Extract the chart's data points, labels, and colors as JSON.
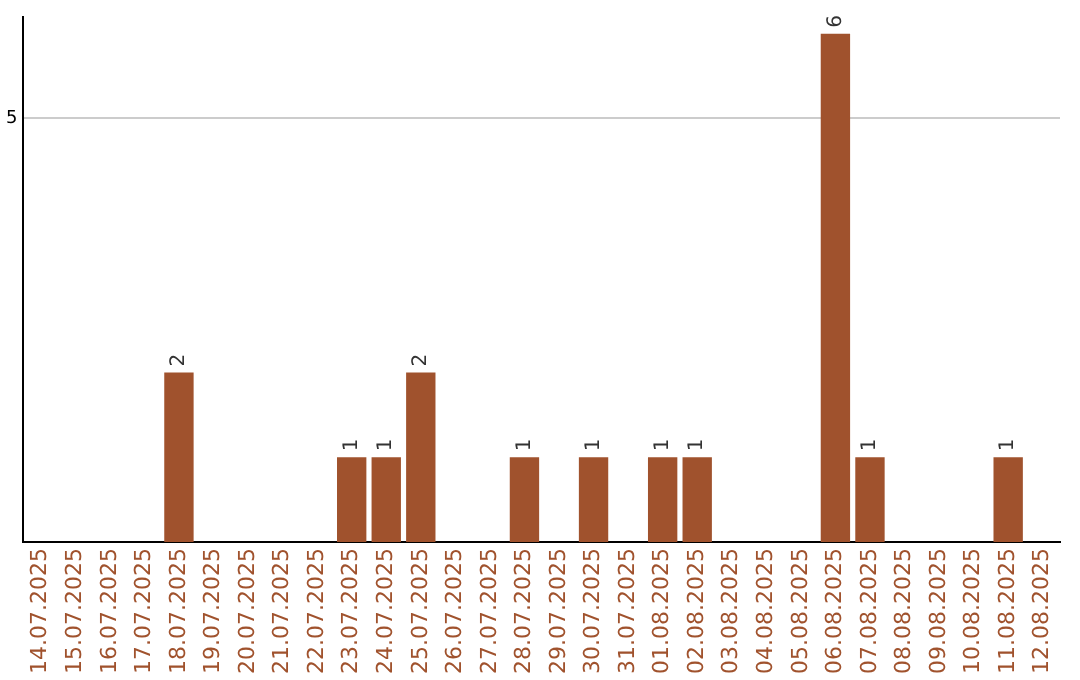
{
  "chart_data": {
    "type": "bar",
    "categories": [
      "14.07.2025",
      "15.07.2025",
      "16.07.2025",
      "17.07.2025",
      "18.07.2025",
      "19.07.2025",
      "20.07.2025",
      "21.07.2025",
      "22.07.2025",
      "23.07.2025",
      "24.07.2025",
      "25.07.2025",
      "26.07.2025",
      "27.07.2025",
      "28.07.2025",
      "29.07.2025",
      "30.07.2025",
      "31.07.2025",
      "01.08.2025",
      "02.08.2025",
      "03.08.2025",
      "04.08.2025",
      "05.08.2025",
      "06.08.2025",
      "07.08.2025",
      "08.08.2025",
      "09.08.2025",
      "10.08.2025",
      "11.08.2025",
      "12.08.2025"
    ],
    "values": [
      0,
      0,
      0,
      0,
      2,
      0,
      0,
      0,
      0,
      1,
      1,
      2,
      0,
      0,
      1,
      0,
      1,
      0,
      1,
      1,
      0,
      0,
      0,
      6,
      1,
      0,
      0,
      0,
      1,
      0
    ],
    "value_labels": [
      null,
      null,
      null,
      null,
      "2",
      null,
      null,
      null,
      null,
      "1",
      "1",
      "2",
      null,
      null,
      "1",
      null,
      "1",
      null,
      "1",
      "1",
      null,
      null,
      null,
      "6",
      "1",
      null,
      null,
      null,
      "1",
      null
    ],
    "color": "#a0522d",
    "ylim": [
      0,
      6.2
    ],
    "yticks": [
      5
    ],
    "grid": "y"
  }
}
